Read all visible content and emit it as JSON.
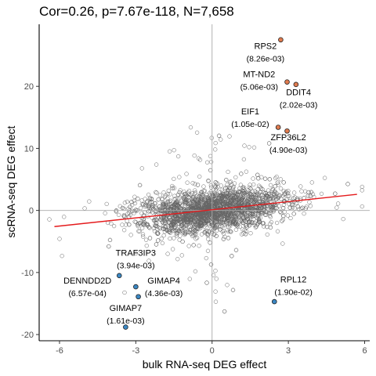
{
  "chart_data": {
    "type": "scatter",
    "title": "Cor=0.26, p=7.67e-118, N=7,658",
    "xlabel": "bulk RNA-seq DEG effect",
    "ylabel": "scRNA-seq DEG effect",
    "xlim": [
      -6.8,
      6.2
    ],
    "ylim": [
      -21,
      30
    ],
    "xticks": [
      -6,
      -3,
      0,
      3,
      6
    ],
    "yticks": [
      -20,
      -10,
      0,
      10,
      20
    ],
    "xtick_labels": [
      "-6",
      "-3",
      "0",
      "3",
      "6"
    ],
    "ytick_labels": [
      "-20",
      "-10",
      "0",
      "10",
      "20"
    ],
    "grid": false,
    "reference_lines": {
      "x": 0,
      "y": 0
    },
    "fit_line": {
      "x": [
        -6.2,
        5.7
      ],
      "y": [
        -2.6,
        2.6
      ],
      "color": "#e41a1c"
    },
    "background_points": {
      "count": 7658,
      "color": "#666666",
      "style": "open-circle"
    },
    "highlighted_up": {
      "color": "#e07b4f",
      "points": [
        {
          "gene": "RPS2",
          "p": "(8.26e-03)",
          "x": 2.7,
          "y": 27.5
        },
        {
          "gene": "MT-ND2",
          "p": "(5.06e-03)",
          "x": 2.95,
          "y": 20.7
        },
        {
          "gene": "DDIT4",
          "p": "(2.02e-03)",
          "x": 3.3,
          "y": 20.3
        },
        {
          "gene": "EIF1",
          "p": "(1.05e-02)",
          "x": 2.6,
          "y": 13.4
        },
        {
          "gene": "ZFP36L2",
          "p": "(4.90e-03)",
          "x": 2.95,
          "y": 12.8
        }
      ]
    },
    "highlighted_down": {
      "color": "#3b88c4",
      "points": [
        {
          "gene": "TRAF3IP3",
          "p": "(3.94e-03)",
          "x": -3.65,
          "y": -10.5
        },
        {
          "gene": "DENNDD2D",
          "p": "(6.57e-04)",
          "x": -3.0,
          "y": -12.3
        },
        {
          "gene": "GIMAP4",
          "p": "(4.36e-03)",
          "x": -2.9,
          "y": -13.9
        },
        {
          "gene": "GIMAP7",
          "p": "(1.61e-03)",
          "x": -3.4,
          "y": -18.8
        },
        {
          "gene": "RPL12",
          "p": "(1.90e-02)",
          "x": 2.45,
          "y": -14.7
        }
      ]
    },
    "annotations": [
      {
        "gene": "RPS2",
        "p": "(8.26e-03)",
        "x": 2.1,
        "y": 26.0
      },
      {
        "gene": "MT-ND2",
        "p": "(5.06e-03)",
        "x": 1.85,
        "y": 21.5
      },
      {
        "gene": "DDIT4",
        "p": "(2.02e-03)",
        "x": 3.4,
        "y": 18.6
      },
      {
        "gene": "EIF1",
        "p": "(1.05e-02)",
        "x": 1.5,
        "y": 15.5
      },
      {
        "gene": "ZFP36L2",
        "p": "(4.90e-03)",
        "x": 3.0,
        "y": 11.3
      },
      {
        "gene": "TRAF3IP3",
        "p": "(3.94e-03)",
        "x": -3.0,
        "y": -7.3
      },
      {
        "gene": "DENNDD2D",
        "p": "(6.57e-04)",
        "x": -4.9,
        "y": -11.8
      },
      {
        "gene": "GIMAP4",
        "p": "(4.36e-03)",
        "x": -1.9,
        "y": -11.8
      },
      {
        "gene": "GIMAP7",
        "p": "(1.61e-03)",
        "x": -3.4,
        "y": -16.2
      },
      {
        "gene": "RPL12",
        "p": "(1.90e-02)",
        "x": 3.2,
        "y": -11.6
      }
    ]
  }
}
